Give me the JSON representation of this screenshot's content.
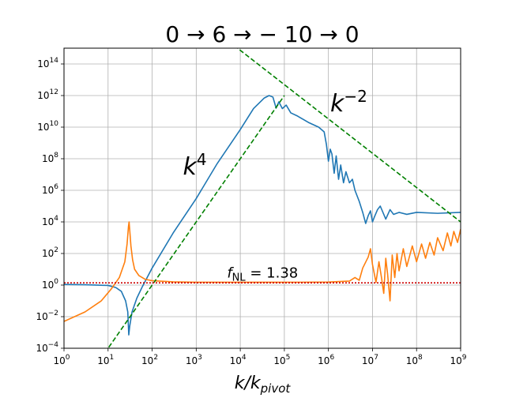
{
  "chart_data": {
    "type": "line",
    "title": "0 → 6 → − 10 → 0",
    "xlabel": "k/k_pivot",
    "xlabel_main": "k/k",
    "xlabel_sub": "pivot",
    "ylabel": "",
    "xscale": "log",
    "yscale": "log",
    "xlim": [
      1,
      1000000000
    ],
    "ylim": [
      0.0001,
      1000000000000000
    ],
    "grid": true,
    "x_ticks": [
      {
        "base": "10",
        "exp": "0",
        "value": 1
      },
      {
        "base": "10",
        "exp": "1",
        "value": 10
      },
      {
        "base": "10",
        "exp": "2",
        "value": 100
      },
      {
        "base": "10",
        "exp": "3",
        "value": 1000
      },
      {
        "base": "10",
        "exp": "4",
        "value": 10000
      },
      {
        "base": "10",
        "exp": "5",
        "value": 100000
      },
      {
        "base": "10",
        "exp": "6",
        "value": 1000000
      },
      {
        "base": "10",
        "exp": "7",
        "value": 10000000
      },
      {
        "base": "10",
        "exp": "8",
        "value": 100000000
      },
      {
        "base": "10",
        "exp": "9",
        "value": 1000000000
      }
    ],
    "y_ticks": [
      {
        "base": "10",
        "exp": "−4",
        "value": 0.0001
      },
      {
        "base": "10",
        "exp": "−2",
        "value": 0.01
      },
      {
        "base": "10",
        "exp": "0",
        "value": 1
      },
      {
        "base": "10",
        "exp": "2",
        "value": 100
      },
      {
        "base": "10",
        "exp": "4",
        "value": 10000
      },
      {
        "base": "10",
        "exp": "6",
        "value": 1000000
      },
      {
        "base": "10",
        "exp": "8",
        "value": 100000000
      },
      {
        "base": "10",
        "exp": "10",
        "value": 10000000000
      },
      {
        "base": "10",
        "exp": "12",
        "value": 1000000000000
      },
      {
        "base": "10",
        "exp": "14",
        "value": 100000000000000
      }
    ],
    "series": [
      {
        "color": "#1f77b4",
        "points": [
          [
            1,
            1.1
          ],
          [
            3,
            1.05
          ],
          [
            10,
            0.95
          ],
          [
            15,
            0.7
          ],
          [
            20,
            0.4
          ],
          [
            25,
            0.1
          ],
          [
            28,
            0.02
          ],
          [
            29.5,
            0.0007
          ],
          [
            31,
            0.0025
          ],
          [
            35,
            0.02
          ],
          [
            45,
            0.15
          ],
          [
            60,
            0.8
          ],
          [
            100,
            12
          ],
          [
            300,
            2000
          ],
          [
            1000,
            300000
          ],
          [
            3000,
            50000000
          ],
          [
            10000,
            7000000000
          ],
          [
            20000,
            150000000000
          ],
          [
            35000,
            700000000000
          ],
          [
            45000,
            1000000000000
          ],
          [
            55000,
            800000000000
          ],
          [
            65000,
            160000000000
          ],
          [
            75000,
            400000000000
          ],
          [
            90000,
            150000000000
          ],
          [
            110000,
            250000000000
          ],
          [
            140000,
            80000000000
          ],
          [
            200000,
            50000000000
          ],
          [
            350000,
            20000000000
          ],
          [
            600000,
            10000000000
          ],
          [
            800000,
            5000000000
          ],
          [
            900000,
            800000000
          ],
          [
            1000000,
            70000000
          ],
          [
            1100000,
            400000000
          ],
          [
            1200000,
            200000000
          ],
          [
            1350000,
            12000000
          ],
          [
            1500000,
            150000000
          ],
          [
            1700000,
            5000000
          ],
          [
            1900000,
            40000000
          ],
          [
            2200000,
            3000000
          ],
          [
            2500000,
            15000000
          ],
          [
            3000000,
            3000000
          ],
          [
            3500000,
            5000000
          ],
          [
            4000000,
            1000000
          ],
          [
            5000000,
            200000
          ],
          [
            6000000,
            40000
          ],
          [
            7000000,
            8000
          ],
          [
            8000000,
            25000
          ],
          [
            9000000,
            50000
          ],
          [
            10000000,
            10000
          ],
          [
            11000000,
            20000
          ],
          [
            13000000,
            60000
          ],
          [
            15000000,
            100000
          ],
          [
            20000000,
            15000
          ],
          [
            25000000,
            60000
          ],
          [
            30000000,
            30000
          ],
          [
            40000000,
            40000
          ],
          [
            60000000,
            30000
          ],
          [
            100000000,
            40000
          ],
          [
            300000000,
            35000
          ],
          [
            1000000000,
            40000
          ]
        ]
      },
      {
        "color": "#ff7f0e",
        "points": [
          [
            1,
            0.005
          ],
          [
            3,
            0.02
          ],
          [
            7,
            0.1
          ],
          [
            12,
            0.6
          ],
          [
            18,
            3
          ],
          [
            24,
            30
          ],
          [
            27,
            400
          ],
          [
            29,
            5000
          ],
          [
            30,
            10000
          ],
          [
            31,
            3000
          ],
          [
            33,
            300
          ],
          [
            36,
            40
          ],
          [
            40,
            10
          ],
          [
            50,
            4
          ],
          [
            70,
            2.3
          ],
          [
            100,
            1.9
          ],
          [
            300,
            1.6
          ],
          [
            1000,
            1.5
          ],
          [
            100000,
            1.5
          ],
          [
            1000000,
            1.55
          ],
          [
            3000000,
            1.8
          ],
          [
            4000000,
            3
          ],
          [
            5000000,
            2
          ],
          [
            6000000,
            12
          ],
          [
            8000000,
            60
          ],
          [
            9000000,
            200
          ],
          [
            10000000,
            20
          ],
          [
            12000000,
            1.5
          ],
          [
            14000000,
            30
          ],
          [
            16000000,
            3
          ],
          [
            18000000,
            0.3
          ],
          [
            20000000,
            50
          ],
          [
            22000000,
            5
          ],
          [
            25000000,
            0.1
          ],
          [
            28000000,
            80
          ],
          [
            32000000,
            3
          ],
          [
            36000000,
            100
          ],
          [
            40000000,
            8
          ],
          [
            50000000,
            200
          ],
          [
            60000000,
            15
          ],
          [
            80000000,
            300
          ],
          [
            100000000,
            30
          ],
          [
            130000000,
            400
          ],
          [
            160000000,
            50
          ],
          [
            200000000,
            500
          ],
          [
            250000000,
            80
          ],
          [
            300000000,
            1000
          ],
          [
            400000000,
            150
          ],
          [
            500000000,
            2000
          ],
          [
            600000000,
            300
          ],
          [
            700000000,
            2500
          ],
          [
            850000000,
            500
          ],
          [
            1000000000,
            3500
          ]
        ]
      },
      {
        "color": "#008000",
        "style": "dashed",
        "points": [
          [
            1,
            1e-08
          ],
          [
            100000,
            1000000000000.0
          ]
        ]
      },
      {
        "color": "#008000",
        "style": "dashed",
        "points": [
          [
            3000,
            1e+16
          ],
          [
            1000000000,
            10000
          ]
        ]
      },
      {
        "color": "#cc0000",
        "style": "dotted",
        "points": [
          [
            1,
            1.38
          ],
          [
            1000000000,
            1.38
          ]
        ]
      }
    ],
    "annotations": [
      {
        "text_main": "k",
        "text_sup": "4",
        "x": 500,
        "y": 10000000,
        "style": "big"
      },
      {
        "text_main": "k",
        "text_sup": "−2",
        "x": 1100000,
        "y": 100000000000,
        "style": "big"
      },
      {
        "text_main": "f",
        "text_sub": "NL",
        "text_rest": " = 1.38",
        "x": 5000,
        "y": 3,
        "style": "small"
      }
    ]
  }
}
